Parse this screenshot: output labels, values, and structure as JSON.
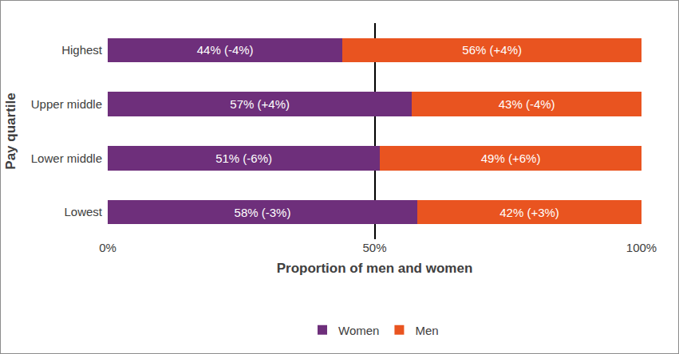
{
  "chart_data": {
    "type": "bar",
    "orientation": "horizontal",
    "stacked": true,
    "data_labels": true,
    "grid": true,
    "legend": "bottom",
    "x_label": "Proportion of men and women",
    "y_label": "Pay quartile",
    "categories": [
      "Lowest",
      "Lower middle",
      "Upper middle",
      "Highest"
    ],
    "series": [
      {
        "name": "Women",
        "color": "#6e2f7b",
        "values": [
          58,
          51,
          57,
          44
        ],
        "value_labels": [
          "58% (-3%)",
          "51% (-6%)",
          "57% (+4%)",
          "44% (-4%)"
        ]
      },
      {
        "name": "Men",
        "color": "#e95420",
        "values": [
          42,
          49,
          43,
          56
        ],
        "value_labels": [
          "42% (+3%)",
          "49% (+6%)",
          "43% (-4%)",
          "56% (+4%)"
        ]
      }
    ],
    "xlim": [
      0,
      100
    ],
    "xticks": [
      {
        "value": 0,
        "label": "0%"
      },
      {
        "value": 50,
        "label": "50%"
      },
      {
        "value": 100,
        "label": "100%"
      }
    ]
  }
}
